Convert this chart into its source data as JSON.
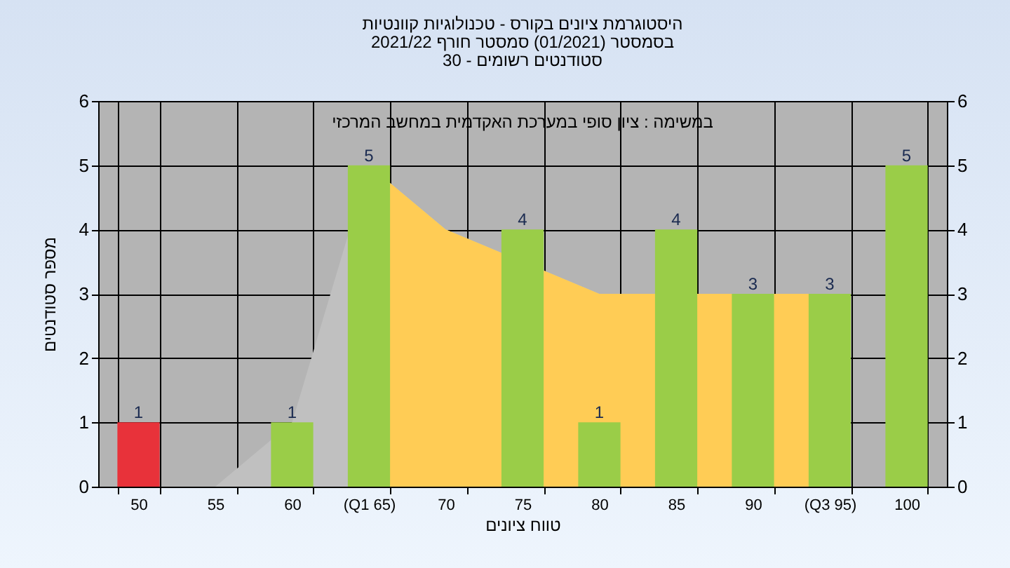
{
  "chart_data": {
    "type": "bar",
    "title": "היסטוגרמת ציונים בקורס - טכנולוגיות קוונטיות\nבסמסטר  (01/2021)  סמסטר חורף 2021/22\nסטודנטים רשומים - 30",
    "xlabel": "טווח ציונים",
    "ylabel": "מספר סטודנטים",
    "annotations": [
      "במשימה : ציון סופי במערכת האקדמית במחשב המרכזי"
    ],
    "categories": [
      "50",
      "55",
      "60",
      "(Q1 65)",
      "70",
      "75",
      "80",
      "85",
      "90",
      "(Q3 95)",
      "100"
    ],
    "series": [
      {
        "type": "area",
        "color": "#c0c0c0",
        "values": [
          0,
          0,
          1,
          5,
          4,
          null,
          3,
          null,
          3,
          3,
          null
        ]
      },
      {
        "type": "area",
        "color": "#ffcc55",
        "values": [
          null,
          null,
          null,
          5,
          4,
          null,
          3,
          null,
          3,
          3,
          null
        ]
      },
      {
        "colors": [
          "#e8323a",
          "#9acd48",
          "#9acd48",
          "#9acd48",
          "#9acd48",
          "#9acd48",
          "#9acd48",
          "#9acd48",
          "#9acd48",
          "#9acd48",
          "#9acd48"
        ],
        "values": [
          1,
          0,
          1,
          5,
          0,
          4,
          1,
          4,
          3,
          3,
          5
        ],
        "value_labels": [
          "1",
          null,
          "1",
          "5",
          null,
          "4",
          "1",
          "4",
          "3",
          "3",
          "5"
        ]
      }
    ],
    "ylim": [
      0,
      6
    ],
    "yticks": [
      0,
      1,
      2,
      3,
      4,
      5,
      6
    ],
    "y2lim": [
      0,
      6
    ],
    "y2ticks": [
      0,
      1,
      2,
      3,
      4,
      5,
      6
    ],
    "grid": true
  }
}
